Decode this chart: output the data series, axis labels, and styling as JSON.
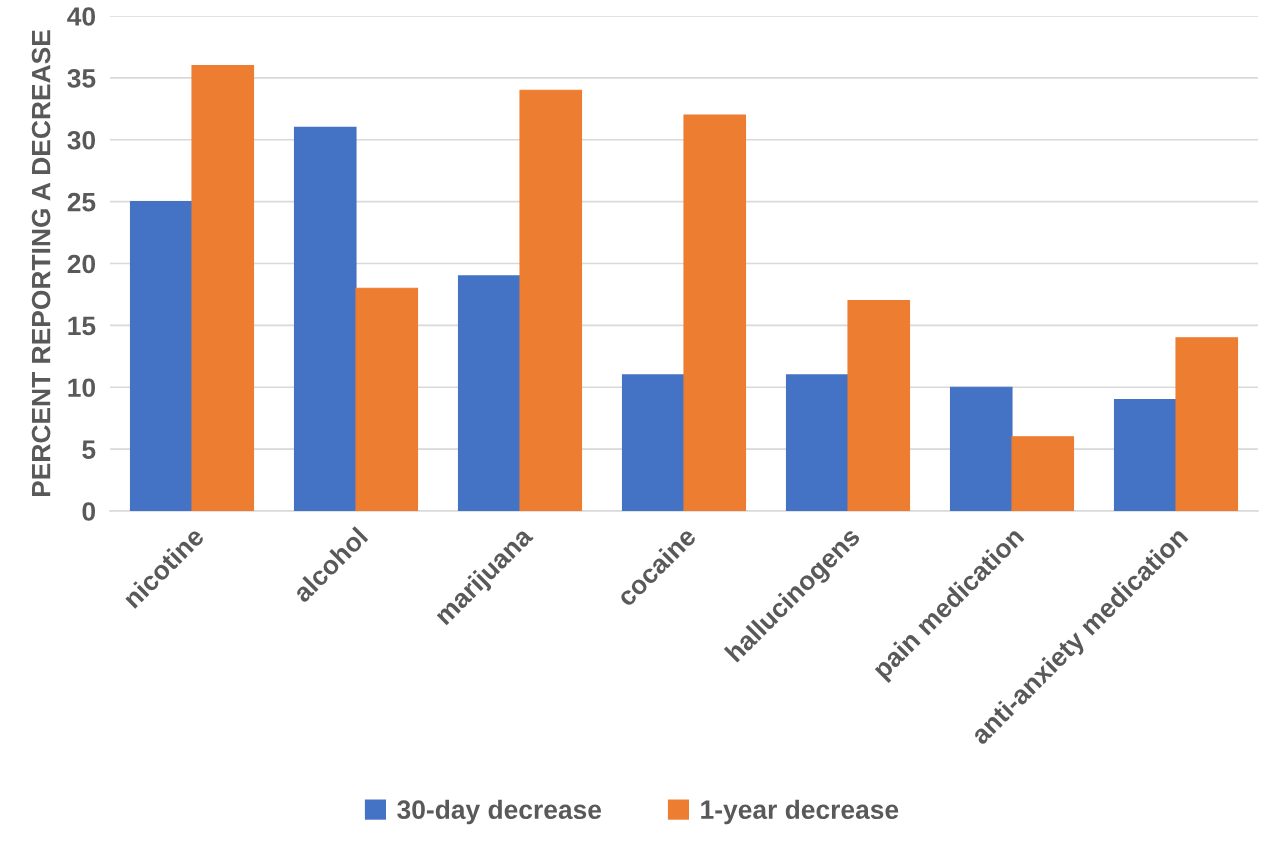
{
  "chart_data": {
    "type": "bar",
    "ylabel": "PERCENT REPORTING A DECREASE",
    "categories": [
      "nicotine",
      "alcohol",
      "marijuana",
      "cocaine",
      "hallucinogens",
      "pain medication",
      "anti-anxiety medication"
    ],
    "series": [
      {
        "name": "30-day decrease",
        "color": "#4472c4",
        "values": [
          25,
          31,
          19,
          11,
          11,
          10,
          9
        ]
      },
      {
        "name": "1-year decrease",
        "color": "#ed7d31",
        "values": [
          36,
          18,
          34,
          32,
          17,
          6,
          14
        ]
      }
    ],
    "ylim": [
      0,
      40
    ],
    "yticks": [
      0,
      5,
      10,
      15,
      20,
      25,
      30,
      35,
      40
    ],
    "grid": "y",
    "legend": "bottom"
  }
}
